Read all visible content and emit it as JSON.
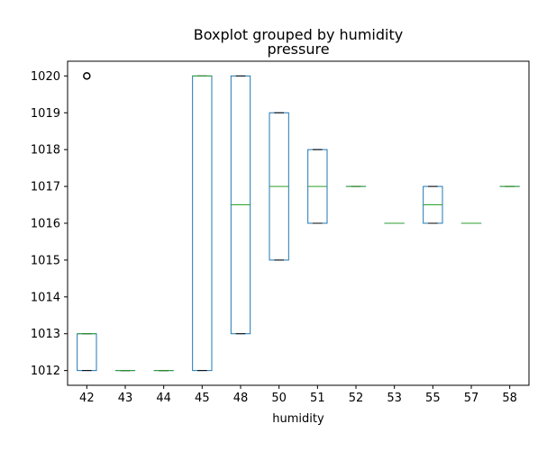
{
  "chart_data": {
    "type": "box",
    "title": "Boxplot grouped by humidity",
    "subtitle": "pressure",
    "xlabel": "humidity",
    "ylabel": "",
    "ylim": [
      1011.6,
      1020.4
    ],
    "yticks": [
      1012,
      1013,
      1014,
      1015,
      1016,
      1017,
      1018,
      1019,
      1020
    ],
    "grid": false,
    "colors": {
      "box": "#1f77b4",
      "median": "#2ca02c",
      "whisker": "#000000",
      "flier": "#000000"
    },
    "categories": [
      "42",
      "43",
      "44",
      "45",
      "48",
      "50",
      "51",
      "52",
      "53",
      "55",
      "57",
      "58"
    ],
    "boxes": [
      {
        "category": "42",
        "whislo": 1012,
        "q1": 1012,
        "med": 1013,
        "q3": 1013,
        "whishi": 1013,
        "fliers": [
          1020
        ]
      },
      {
        "category": "43",
        "whislo": 1012,
        "q1": 1012,
        "med": 1012,
        "q3": 1012,
        "whishi": 1012,
        "fliers": []
      },
      {
        "category": "44",
        "whislo": 1012,
        "q1": 1012,
        "med": 1012,
        "q3": 1012,
        "whishi": 1012,
        "fliers": []
      },
      {
        "category": "45",
        "whislo": 1012,
        "q1": 1012,
        "med": 1020,
        "q3": 1020,
        "whishi": 1020,
        "fliers": []
      },
      {
        "category": "48",
        "whislo": 1013,
        "q1": 1013,
        "med": 1016.5,
        "q3": 1020,
        "whishi": 1020,
        "fliers": []
      },
      {
        "category": "50",
        "whislo": 1015,
        "q1": 1015,
        "med": 1017,
        "q3": 1019,
        "whishi": 1019,
        "fliers": []
      },
      {
        "category": "51",
        "whislo": 1016,
        "q1": 1016,
        "med": 1017,
        "q3": 1018,
        "whishi": 1018,
        "fliers": []
      },
      {
        "category": "52",
        "whislo": 1017,
        "q1": 1017,
        "med": 1017,
        "q3": 1017,
        "whishi": 1017,
        "fliers": []
      },
      {
        "category": "53",
        "whislo": 1016,
        "q1": 1016,
        "med": 1016,
        "q3": 1016,
        "whishi": 1016,
        "fliers": []
      },
      {
        "category": "55",
        "whislo": 1016,
        "q1": 1016,
        "med": 1016.5,
        "q3": 1017,
        "whishi": 1017,
        "fliers": []
      },
      {
        "category": "57",
        "whislo": 1016,
        "q1": 1016,
        "med": 1016,
        "q3": 1016,
        "whishi": 1016,
        "fliers": []
      },
      {
        "category": "58",
        "whislo": 1017,
        "q1": 1017,
        "med": 1017,
        "q3": 1017,
        "whishi": 1017,
        "fliers": []
      }
    ]
  }
}
